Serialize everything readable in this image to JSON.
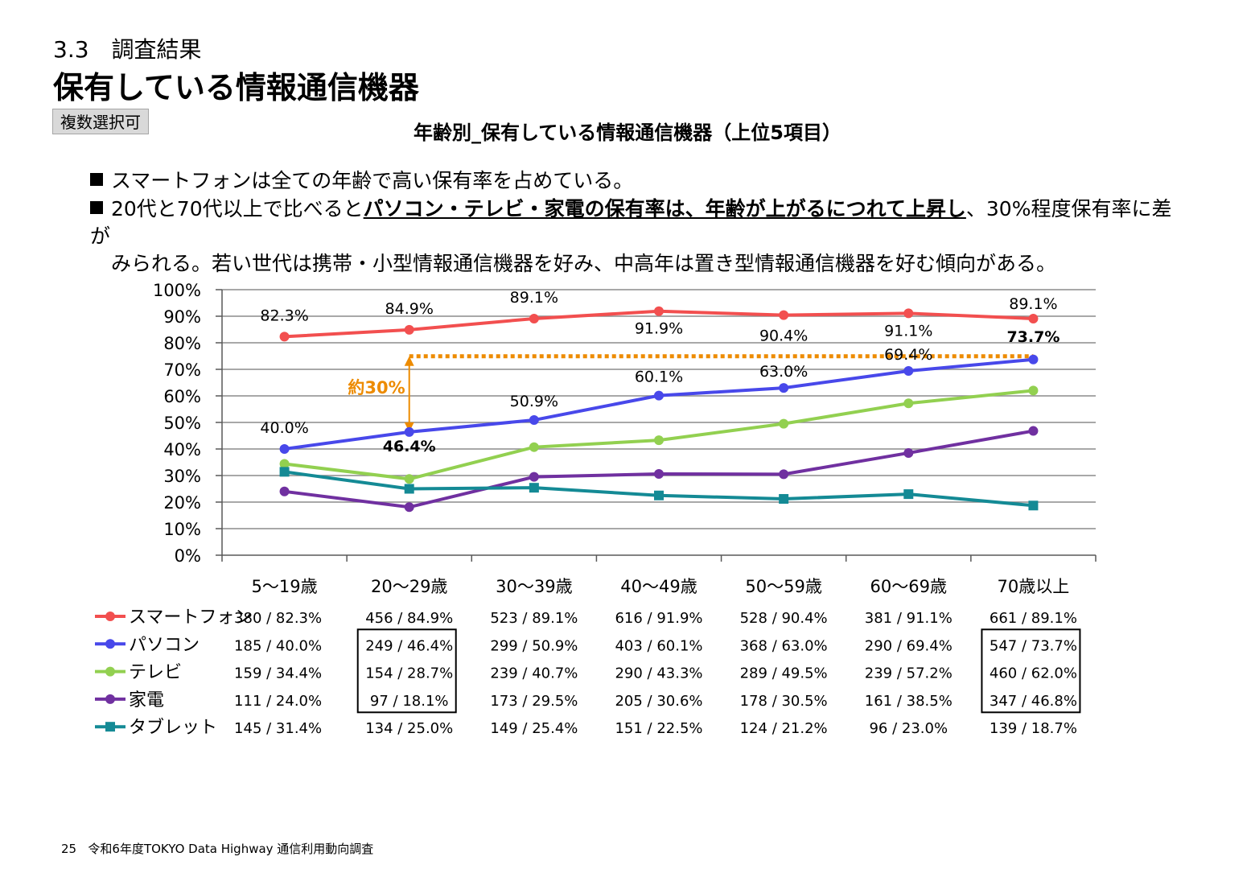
{
  "header": {
    "section_number": "3.3　調査結果",
    "title": "保有している情報通信機器",
    "badge": "複数選択可",
    "chart_title": "年齢別_保有している情報通信機器（上位5項目）"
  },
  "bullets": {
    "b1": "スマートフォンは全ての年齢で高い保有率を占めている。",
    "b2_pre": "20代と70代以上で比べると",
    "b2_bold": "パソコン・テレビ・家電の保有率は、年齢が上がるにつれて上昇し",
    "b2_post": "、30%程度保有率に差が",
    "b2_cont": "みられる。若い世代は携帯・小型情報通信機器を好み、中高年は置き型情報通信機器を好む傾向がある。"
  },
  "annotation": {
    "label": "約30%",
    "color": "#ed8b00"
  },
  "footer": {
    "page": "25",
    "text": "令和6年度TOKYO Data Highway 通信利用動向調査"
  },
  "chart_data": {
    "type": "line",
    "categories": [
      "5～19歳",
      "20～29歳",
      "30～39歳",
      "40～49歳",
      "50～59歳",
      "60～69歳",
      "70歳以上"
    ],
    "ylim": [
      0,
      100
    ],
    "yticks": [
      "0%",
      "10%",
      "20%",
      "30%",
      "40%",
      "50%",
      "60%",
      "70%",
      "80%",
      "90%",
      "100%"
    ],
    "grid": true,
    "series": [
      {
        "name": "スマートフォン",
        "color": "#f24f4f",
        "marker": "circle",
        "values": [
          82.3,
          84.9,
          89.1,
          91.9,
          90.4,
          91.1,
          89.1
        ],
        "counts": [
          "380 / 82.3%",
          "456 / 84.9%",
          "523 / 89.1%",
          "616 / 91.9%",
          "528 / 90.4%",
          "381 / 91.1%",
          "661 / 89.1%"
        ]
      },
      {
        "name": "パソコン",
        "color": "#4848ea",
        "marker": "circle",
        "values": [
          40.0,
          46.4,
          50.9,
          60.1,
          63.0,
          69.4,
          73.7
        ],
        "counts": [
          "185 / 40.0%",
          "249 / 46.4%",
          "299 / 50.9%",
          "403 / 60.1%",
          "368 / 63.0%",
          "290 / 69.4%",
          "547 / 73.7%"
        ]
      },
      {
        "name": "テレビ",
        "color": "#92d050",
        "marker": "circle",
        "values": [
          34.4,
          28.7,
          40.7,
          43.3,
          49.5,
          57.2,
          62.0
        ],
        "counts": [
          "159 / 34.4%",
          "154 / 28.7%",
          "239 / 40.7%",
          "290 / 43.3%",
          "289 / 49.5%",
          "239 / 57.2%",
          "460 / 62.0%"
        ]
      },
      {
        "name": "家電",
        "color": "#7030a0",
        "marker": "circle",
        "values": [
          24.0,
          18.1,
          29.5,
          30.6,
          30.5,
          38.5,
          46.8
        ],
        "counts": [
          "111 / 24.0%",
          "97 / 18.1%",
          "173 / 29.5%",
          "205 / 30.6%",
          "178 / 30.5%",
          "161 / 38.5%",
          "347 / 46.8%"
        ]
      },
      {
        "name": "タブレット",
        "color": "#148a95",
        "marker": "square",
        "values": [
          31.4,
          25.0,
          25.4,
          22.5,
          21.2,
          23.0,
          18.7
        ],
        "counts": [
          "145 / 31.4%",
          "134 / 25.0%",
          "149 / 25.4%",
          "151 / 22.5%",
          "124 / 21.2%",
          "96 / 23.0%",
          "139 / 18.7%"
        ]
      }
    ],
    "data_labels": [
      {
        "text": "82.3%"
      },
      {
        "text": "84.9%"
      },
      {
        "text": "89.1%"
      },
      {
        "text": "91.9%"
      },
      {
        "text": "90.4%"
      },
      {
        "text": "91.1%"
      },
      {
        "text": "89.1%"
      },
      {
        "text": "40.0%"
      },
      {
        "text": "46.4%",
        "bold": true
      },
      {
        "text": "50.9%"
      },
      {
        "text": "60.1%"
      },
      {
        "text": "63.0%"
      },
      {
        "text": "69.4%"
      },
      {
        "text": "73.7%",
        "bold": true
      }
    ],
    "highlighted_columns": [
      "20～29歳",
      "70歳以上"
    ]
  }
}
